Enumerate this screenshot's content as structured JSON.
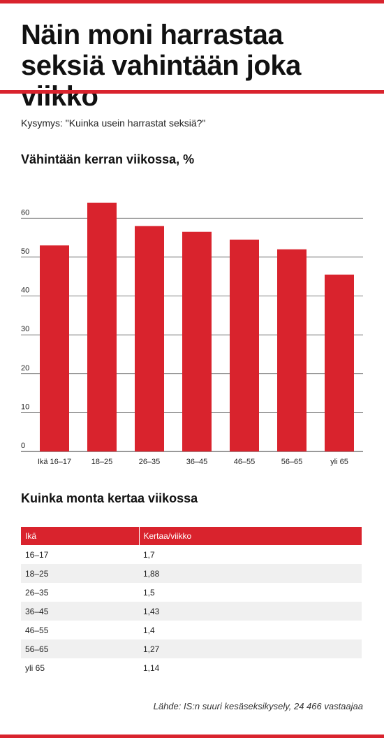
{
  "title": "Näin moni harrastaa seksiä vahintään joka viikko",
  "question": "Kysymys: \"Kuinka usein harrastat seksiä?\"",
  "colors": {
    "accent": "#d9232d",
    "grid": "#555555",
    "row_alt": "#f0f0f0"
  },
  "chart_data": {
    "type": "bar",
    "title": "Vähintään kerran viikossa, %",
    "categories": [
      "Ikä 16–17",
      "18–25",
      "26–35",
      "36–45",
      "46–55",
      "56–65",
      "yli 65"
    ],
    "values": [
      53,
      64,
      58,
      56.5,
      54.5,
      52,
      45.5
    ],
    "ylim": [
      0,
      64
    ],
    "yticks": [
      0,
      10,
      20,
      30,
      40,
      50,
      60
    ],
    "grid": true
  },
  "table": {
    "title": "Kuinka monta kertaa viikossa",
    "headers": [
      "Ikä",
      "Kertaa/viikko"
    ],
    "rows": [
      [
        "16–17",
        "1,7"
      ],
      [
        "18–25",
        "1,88"
      ],
      [
        "26–35",
        "1,5"
      ],
      [
        "36–45",
        "1,43"
      ],
      [
        "46–55",
        "1,4"
      ],
      [
        "56–65",
        "1,27"
      ],
      [
        "yli 65",
        "1,14"
      ]
    ]
  },
  "source": "Lähde: IS:n suuri kesäseksikysely, 24 466 vastaajaa"
}
